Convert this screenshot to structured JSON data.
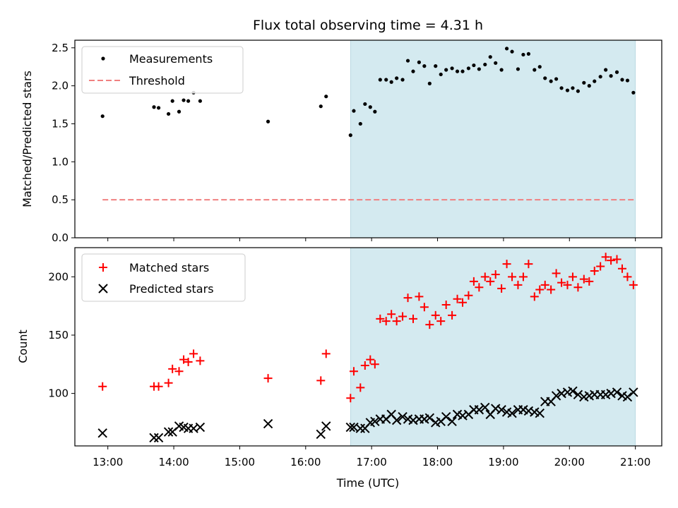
{
  "chart_data": {
    "title": "Flux total observing time = 4.31 h",
    "xlabel": "Time (UTC)",
    "x_unit": "hours UTC",
    "xlim": [
      12.5,
      21.4
    ],
    "xtick_values": [
      13,
      14,
      15,
      16,
      17,
      18,
      19,
      20,
      21
    ],
    "xtick_labels": [
      "13:00",
      "14:00",
      "15:00",
      "16:00",
      "17:00",
      "18:00",
      "19:00",
      "20:00",
      "21:00"
    ],
    "shaded_span": [
      16.68,
      21.0
    ],
    "shade_color": "#d4eaf0",
    "x": [
      12.92,
      13.7,
      13.77,
      13.92,
      13.98,
      14.08,
      14.15,
      14.22,
      14.3,
      14.4,
      15.43,
      16.23,
      16.31,
      16.68,
      16.73,
      16.83,
      16.9,
      16.98,
      17.05,
      17.13,
      17.22,
      17.3,
      17.38,
      17.47,
      17.55,
      17.63,
      17.72,
      17.8,
      17.88,
      17.97,
      18.05,
      18.13,
      18.22,
      18.3,
      18.38,
      18.47,
      18.55,
      18.63,
      18.72,
      18.8,
      18.88,
      18.97,
      19.05,
      19.13,
      19.22,
      19.3,
      19.38,
      19.47,
      19.55,
      19.63,
      19.72,
      19.8,
      19.88,
      19.97,
      20.05,
      20.13,
      20.22,
      20.3,
      20.38,
      20.47,
      20.55,
      20.63,
      20.72,
      20.8,
      20.88,
      20.97
    ],
    "panels": [
      {
        "type": "scatter",
        "ylabel": "Matched/Predicted stars",
        "ylim": [
          0,
          2.6
        ],
        "yticks": [
          0.0,
          0.5,
          1.0,
          1.5,
          2.0,
          2.5
        ],
        "ytick_labels": [
          "0.0",
          "0.5",
          "1.0",
          "1.5",
          "2.0",
          "2.5"
        ],
        "legend_position": "top-left",
        "series": [
          {
            "name": "Measurements",
            "color": "#000000",
            "marker": "dot",
            "values": [
              1.6,
              1.72,
              1.71,
              1.63,
              1.8,
              1.66,
              1.81,
              1.8,
              1.91,
              1.8,
              1.53,
              1.73,
              1.86,
              1.35,
              1.67,
              1.5,
              1.76,
              1.72,
              1.66,
              2.08,
              2.08,
              2.05,
              2.1,
              2.08,
              2.33,
              2.19,
              2.31,
              2.26,
              2.03,
              2.26,
              2.15,
              2.21,
              2.23,
              2.19,
              2.19,
              2.23,
              2.27,
              2.22,
              2.28,
              2.38,
              2.3,
              2.21,
              2.49,
              2.45,
              2.22,
              2.41,
              2.42,
              2.21,
              2.25,
              2.1,
              2.06,
              2.09,
              1.97,
              1.94,
              1.97,
              1.93,
              2.04,
              2.0,
              2.06,
              2.12,
              2.21,
              2.13,
              2.18,
              2.08,
              2.07,
              1.91
            ]
          }
        ],
        "threshold": {
          "name": "Threshold",
          "value": 0.5,
          "x_range": [
            12.92,
            21.0
          ],
          "color": "#f08080",
          "style": "dashed"
        }
      },
      {
        "type": "scatter",
        "ylabel": "Count",
        "ylim": [
          55,
          225
        ],
        "yticks": [
          100,
          150,
          200
        ],
        "ytick_labels": [
          "100",
          "150",
          "200"
        ],
        "legend_position": "top-left",
        "series": [
          {
            "name": "Matched stars",
            "color": "#ff0000",
            "marker": "plus",
            "values": [
              106,
              106,
              106,
              109,
              121,
              119,
              129,
              127,
              134,
              128,
              113,
              111,
              134,
              96,
              119,
              105,
              124,
              129,
              125,
              164,
              162,
              168,
              162,
              166,
              182,
              164,
              183,
              174,
              159,
              167,
              162,
              176,
              167,
              181,
              178,
              184,
              196,
              191,
              200,
              196,
              202,
              190,
              211,
              200,
              193,
              200,
              211,
              183,
              189,
              193,
              189,
              203,
              195,
              193,
              200,
              191,
              198,
              196,
              205,
              209,
              217,
              214,
              215,
              207,
              200,
              193
            ]
          },
          {
            "name": "Predicted stars",
            "color": "#000000",
            "marker": "x",
            "values": [
              66,
              62,
              62,
              67,
              67,
              72,
              71,
              70,
              70,
              71,
              74,
              65,
              72,
              71,
              71,
              70,
              70,
              75,
              76,
              78,
              78,
              82,
              77,
              80,
              78,
              77,
              78,
              78,
              79,
              75,
              76,
              80,
              76,
              82,
              81,
              82,
              86,
              86,
              88,
              82,
              87,
              86,
              84,
              83,
              86,
              86,
              85,
              84,
              83,
              93,
              93,
              98,
              100,
              101,
              102,
              99,
              97,
              98,
              99,
              99,
              99,
              100,
              101,
              98,
              97,
              101
            ]
          }
        ]
      }
    ]
  }
}
